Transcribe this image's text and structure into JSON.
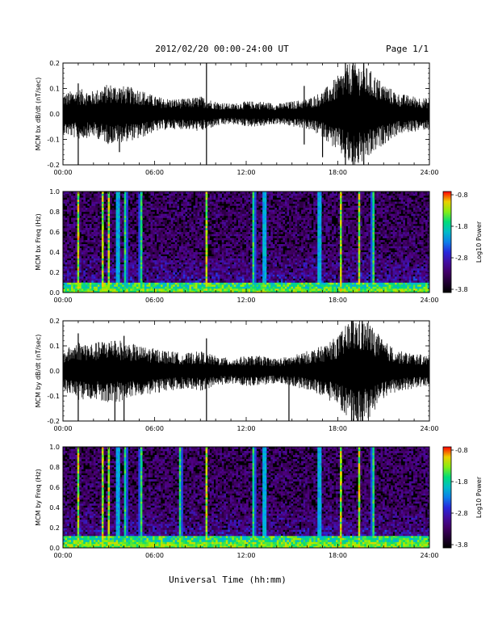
{
  "header": {
    "title": "2012/02/20  00:00-24:00 UT",
    "page": "Page 1/1"
  },
  "xlabel": "Universal Time (hh:mm)",
  "chart_data": [
    {
      "type": "line",
      "ylabel": "MCM bx dB/dt (nT/sec)",
      "xlim": [
        0,
        24
      ],
      "ylim": [
        -0.2,
        0.2
      ],
      "x_ticks": [
        "00:00",
        "06:00",
        "12:00",
        "18:00",
        "24:00"
      ],
      "y_ticks": [
        "-0.2",
        "-0.1",
        "0.0",
        "0.1",
        "0.2"
      ],
      "series": [
        {
          "x": [
            0,
            1,
            2,
            3,
            4,
            5,
            6,
            7,
            8,
            9,
            10,
            11,
            12,
            13,
            14,
            15,
            16,
            17,
            18,
            19,
            20,
            21,
            22,
            23,
            24
          ],
          "envelope": [
            0.08,
            0.1,
            0.09,
            0.12,
            0.11,
            0.1,
            0.07,
            0.06,
            0.06,
            0.07,
            0.05,
            0.04,
            0.05,
            0.05,
            0.04,
            0.05,
            0.06,
            0.09,
            0.15,
            0.22,
            0.18,
            0.12,
            0.08,
            0.07,
            0.06
          ]
        }
      ],
      "spikes": [
        {
          "x": 1.0,
          "min": -0.21,
          "max": 0.12
        },
        {
          "x": 3.7,
          "min": -0.15,
          "max": 0.1
        },
        {
          "x": 9.4,
          "min": -0.21,
          "max": 0.22
        },
        {
          "x": 15.8,
          "min": -0.12,
          "max": 0.11
        },
        {
          "x": 17.0,
          "min": -0.17,
          "max": 0.06
        },
        {
          "x": 18.5,
          "min": -0.21,
          "max": 0.22
        },
        {
          "x": 19.0,
          "min": -0.22,
          "max": 0.22
        },
        {
          "x": 19.7,
          "min": -0.2,
          "max": 0.22
        }
      ]
    },
    {
      "type": "heatmap",
      "ylabel": "MCM bx Freq (Hz)",
      "xlim": [
        0,
        24
      ],
      "ylim": [
        0,
        1.0
      ],
      "x_ticks": [
        "00:00",
        "06:00",
        "12:00",
        "18:00",
        "24:00"
      ],
      "y_ticks": [
        "0.0",
        "0.2",
        "0.4",
        "0.6",
        "0.8",
        "1.0"
      ],
      "colorbar": {
        "label": "Log10 Power",
        "ticks": [
          "-0.8",
          "-1.8",
          "-2.8",
          "-3.8"
        ],
        "range": [
          -3.8,
          -0.8
        ]
      },
      "vertical_lines_hours": [
        1.0,
        2.6,
        3.0,
        3.6,
        4.1,
        5.1,
        9.4,
        12.5,
        13.2,
        16.8,
        18.2,
        19.4,
        20.3
      ],
      "low_freq_band_hz": 0.1
    },
    {
      "type": "line",
      "ylabel": "MCM by dB/dt (nT/sec)",
      "xlim": [
        0,
        24
      ],
      "ylim": [
        -0.2,
        0.2
      ],
      "x_ticks": [
        "00:00",
        "06:00",
        "12:00",
        "18:00",
        "24:00"
      ],
      "y_ticks": [
        "-0.2",
        "-0.1",
        "0.0",
        "0.1",
        "0.2"
      ],
      "series": [
        {
          "x": [
            0,
            1,
            2,
            3,
            4,
            5,
            6,
            7,
            8,
            9,
            10,
            11,
            12,
            13,
            14,
            15,
            16,
            17,
            18,
            19,
            20,
            21,
            22,
            23,
            24
          ],
          "envelope": [
            0.08,
            0.12,
            0.11,
            0.13,
            0.12,
            0.1,
            0.09,
            0.08,
            0.07,
            0.08,
            0.06,
            0.05,
            0.06,
            0.06,
            0.05,
            0.06,
            0.08,
            0.1,
            0.14,
            0.22,
            0.2,
            0.12,
            0.08,
            0.07,
            0.06
          ]
        }
      ],
      "spikes": [
        {
          "x": 1.0,
          "min": -0.21,
          "max": 0.15
        },
        {
          "x": 3.4,
          "min": -0.21,
          "max": 0.12
        },
        {
          "x": 4.0,
          "min": -0.21,
          "max": 0.14
        },
        {
          "x": 9.4,
          "min": -0.21,
          "max": 0.13
        },
        {
          "x": 14.8,
          "min": -0.21,
          "max": 0.05
        },
        {
          "x": 18.9,
          "min": -0.22,
          "max": 0.22
        },
        {
          "x": 19.6,
          "min": -0.22,
          "max": 0.22
        }
      ]
    },
    {
      "type": "heatmap",
      "ylabel": "MCM by Freq (Hz)",
      "xlim": [
        0,
        24
      ],
      "ylim": [
        0,
        1.0
      ],
      "x_ticks": [
        "00:00",
        "06:00",
        "12:00",
        "18:00",
        "24:00"
      ],
      "y_ticks": [
        "0.0",
        "0.2",
        "0.4",
        "0.6",
        "0.8",
        "1.0"
      ],
      "colorbar": {
        "label": "Log10 Power",
        "ticks": [
          "-0.8",
          "-1.8",
          "-2.8",
          "-3.8"
        ],
        "range": [
          -3.8,
          -0.8
        ]
      },
      "vertical_lines_hours": [
        1.0,
        2.6,
        3.0,
        3.6,
        4.1,
        5.1,
        7.7,
        9.4,
        12.5,
        13.2,
        16.8,
        18.2,
        19.4,
        20.3
      ],
      "low_freq_band_hz": 0.12
    }
  ]
}
